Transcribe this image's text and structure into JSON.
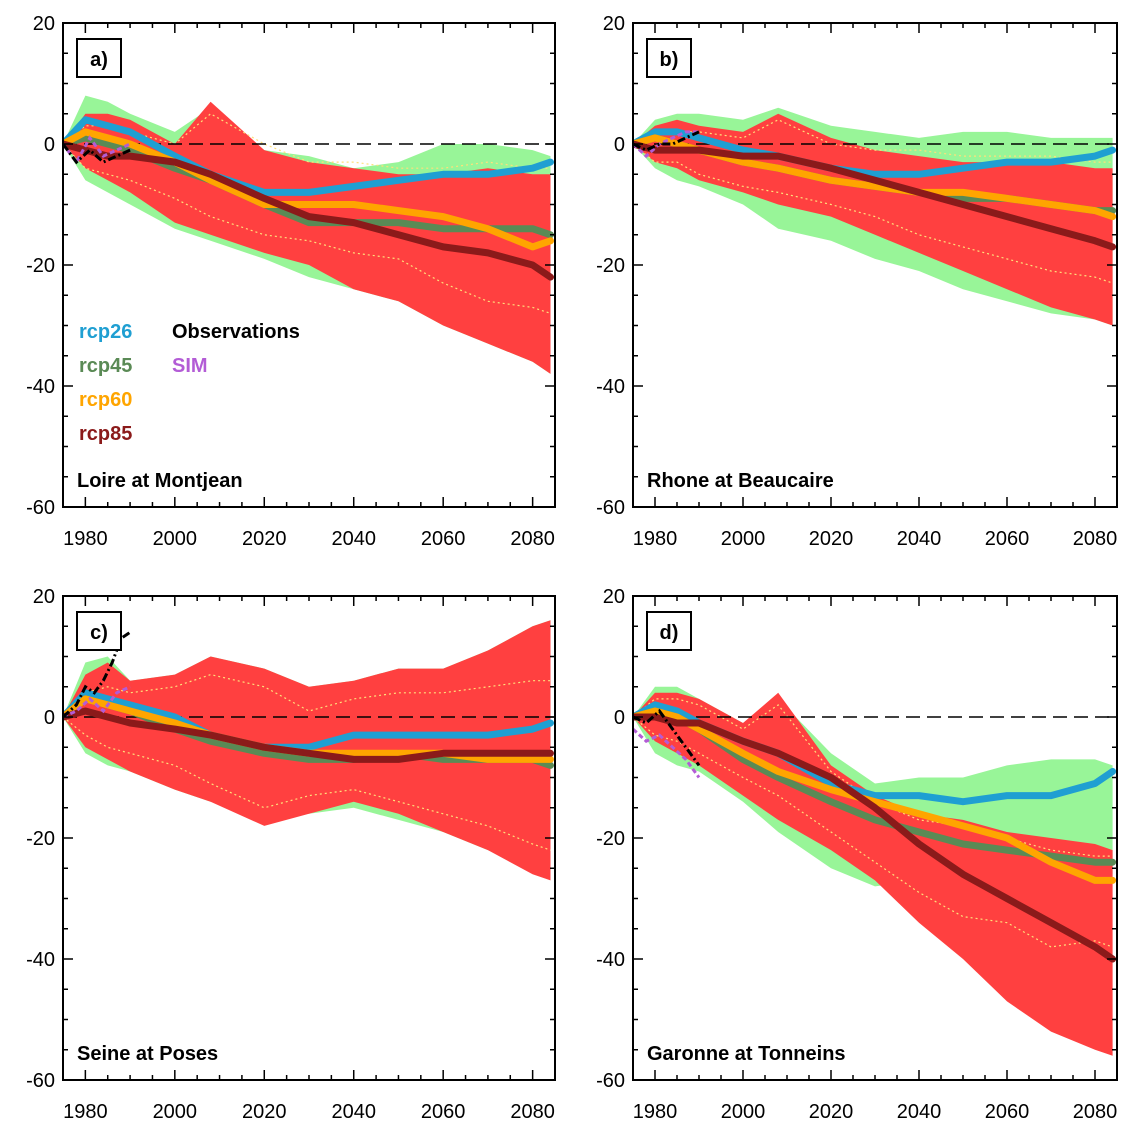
{
  "colors": {
    "rcp26": "#1f9fd2",
    "rcp45": "#5a8a55",
    "rcp60": "#ffa500",
    "rcp85": "#8b1a1a",
    "observations": "#000000",
    "sim": "#b35cd6",
    "spread_rcp85": "#ff4040",
    "spread_all": "#98f598",
    "percentile_line": "#ffe07a"
  },
  "chart_data": [
    {
      "type": "line",
      "panel_label": "a)",
      "station": "Loire at Montjean",
      "xlim": [
        1975,
        2085
      ],
      "ylim": [
        -60,
        20
      ],
      "xticks": [
        1980,
        2000,
        2020,
        2040,
        2060,
        2080
      ],
      "yticks": [
        20,
        0,
        -20,
        -40,
        -60
      ],
      "legend": {
        "placement": "left",
        "entries": [
          {
            "key": "rcp26",
            "label": "rcp26"
          },
          {
            "key": "rcp45",
            "label": "rcp45"
          },
          {
            "key": "rcp60",
            "label": "rcp60"
          },
          {
            "key": "rcp85",
            "label": "rcp85"
          },
          {
            "key": "observations",
            "label": "Observations"
          },
          {
            "key": "sim",
            "label": "SIM"
          }
        ]
      },
      "x": [
        1975,
        1980,
        1985,
        1990,
        2000,
        2008,
        2020,
        2030,
        2040,
        2050,
        2060,
        2070,
        2080,
        2084
      ],
      "green_upper": [
        0,
        8,
        7,
        5,
        2,
        6,
        -1,
        -2,
        -4,
        -3,
        0,
        0,
        -1,
        -2
      ],
      "green_lower": [
        0,
        -6,
        -8,
        -10,
        -14,
        -16,
        -19,
        -22,
        -24,
        -26,
        -30,
        -33,
        -36,
        -38
      ],
      "red_upper": [
        0,
        5,
        5,
        4,
        0,
        7,
        -1,
        -3,
        -4,
        -5,
        -5,
        -4,
        -5,
        -5
      ],
      "red_lower": [
        0,
        -4,
        -6,
        -8,
        -13,
        -15,
        -18,
        -20,
        -24,
        -26,
        -30,
        -33,
        -36,
        -38
      ],
      "dotted_upper": [
        0,
        3,
        3,
        2,
        0,
        5,
        0,
        -3,
        -3,
        -4,
        -4,
        -3,
        -4,
        -4
      ],
      "dotted_lower": [
        0,
        -4,
        -5,
        -6,
        -9,
        -12,
        -15,
        -16,
        -18,
        -19,
        -23,
        -26,
        -27,
        -28
      ],
      "series": [
        {
          "key": "rcp26",
          "values": [
            0,
            4,
            3,
            2,
            -2,
            -5,
            -8,
            -8,
            -7,
            -6,
            -5,
            -5,
            -4,
            -3
          ]
        },
        {
          "key": "rcp45",
          "values": [
            0,
            1,
            0,
            -1,
            -4,
            -6,
            -10,
            -13,
            -13,
            -13,
            -14,
            -14,
            -14,
            -15
          ]
        },
        {
          "key": "rcp60",
          "values": [
            0,
            2,
            1,
            0,
            -3,
            -6,
            -10,
            -10,
            -10,
            -11,
            -12,
            -14,
            -17,
            -16
          ]
        },
        {
          "key": "rcp85",
          "values": [
            0,
            -1,
            -2,
            -2,
            -3,
            -5,
            -9,
            -12,
            -13,
            -15,
            -17,
            -18,
            -20,
            -22
          ]
        }
      ],
      "obs_x": [
        1975,
        1978,
        1981,
        1984,
        1987,
        1990
      ],
      "obs": [
        0,
        -3,
        -1,
        -3,
        -2,
        -1
      ],
      "sim_x": [
        1975,
        1978,
        1981,
        1984,
        1987,
        1990
      ],
      "sim": [
        0,
        -3,
        1,
        -2,
        -1,
        0
      ]
    },
    {
      "type": "line",
      "panel_label": "b)",
      "station": "Rhone at Beaucaire",
      "xlim": [
        1975,
        2085
      ],
      "ylim": [
        -60,
        20
      ],
      "xticks": [
        1980,
        2000,
        2020,
        2040,
        2060,
        2080
      ],
      "yticks": [
        20,
        0,
        -20,
        -40,
        -60
      ],
      "x": [
        1975,
        1980,
        1985,
        1990,
        2000,
        2008,
        2020,
        2030,
        2040,
        2050,
        2060,
        2070,
        2080,
        2084
      ],
      "green_upper": [
        0,
        4,
        5,
        5,
        4,
        6,
        3,
        2,
        1,
        2,
        2,
        1,
        1,
        1
      ],
      "green_lower": [
        0,
        -4,
        -6,
        -7,
        -10,
        -14,
        -16,
        -19,
        -21,
        -24,
        -26,
        -28,
        -29,
        -30
      ],
      "red_upper": [
        0,
        3,
        4,
        3,
        2,
        5,
        1,
        -1,
        -2,
        -3,
        -3,
        -3,
        -4,
        -4
      ],
      "red_lower": [
        0,
        -3,
        -4,
        -6,
        -8,
        -10,
        -12,
        -15,
        -18,
        -21,
        -24,
        -27,
        -29,
        -30
      ],
      "dotted_upper": [
        0,
        2,
        2,
        2,
        1,
        4,
        0,
        -1,
        -1,
        -2,
        -2,
        -2,
        -3,
        -3
      ],
      "dotted_lower": [
        0,
        -3,
        -3,
        -5,
        -7,
        -8,
        -10,
        -12,
        -15,
        -17,
        -19,
        -21,
        -22,
        -23
      ],
      "series": [
        {
          "key": "rcp26",
          "values": [
            0,
            2,
            2,
            1,
            -1,
            -2,
            -4,
            -5,
            -5,
            -4,
            -3,
            -3,
            -2,
            -1
          ]
        },
        {
          "key": "rcp45",
          "values": [
            0,
            1,
            0,
            -1,
            -3,
            -4,
            -6,
            -7,
            -8,
            -9,
            -9,
            -10,
            -11,
            -11
          ]
        },
        {
          "key": "rcp60",
          "values": [
            0,
            1,
            0,
            -1,
            -3,
            -4,
            -6,
            -7,
            -8,
            -8,
            -9,
            -10,
            -11,
            -12
          ]
        },
        {
          "key": "rcp85",
          "values": [
            0,
            -1,
            -1,
            -1,
            -2,
            -2,
            -4,
            -6,
            -8,
            -10,
            -12,
            -14,
            -16,
            -17
          ]
        }
      ],
      "obs_x": [
        1975,
        1978,
        1981,
        1984,
        1987,
        1990
      ],
      "obs": [
        0,
        -1,
        0,
        0,
        1,
        2
      ],
      "sim_x": [
        1975,
        1978,
        1981,
        1984,
        1987,
        1990
      ],
      "sim": [
        0,
        -2,
        0,
        1,
        2,
        2
      ]
    },
    {
      "type": "line",
      "panel_label": "c)",
      "station": "Seine at Poses",
      "xlim": [
        1975,
        2085
      ],
      "ylim": [
        -60,
        20
      ],
      "xticks": [
        1980,
        2000,
        2020,
        2040,
        2060,
        2080
      ],
      "yticks": [
        20,
        0,
        -20,
        -40,
        -60
      ],
      "x": [
        1975,
        1980,
        1985,
        1990,
        2000,
        2008,
        2020,
        2030,
        2040,
        2050,
        2060,
        2070,
        2080,
        2084
      ],
      "green_upper": [
        0,
        9,
        10,
        6,
        7,
        10,
        8,
        5,
        6,
        8,
        8,
        11,
        15,
        16
      ],
      "green_lower": [
        0,
        -6,
        -8,
        -9,
        -12,
        -14,
        -16,
        -16,
        -15,
        -17,
        -19,
        -22,
        -25,
        -27
      ],
      "red_upper": [
        0,
        7,
        9,
        6,
        7,
        10,
        8,
        5,
        6,
        8,
        8,
        11,
        15,
        16
      ],
      "red_lower": [
        0,
        -5,
        -7,
        -9,
        -12,
        -14,
        -18,
        -16,
        -14,
        -16,
        -19,
        -22,
        -26,
        -27
      ],
      "dotted_upper": [
        0,
        4,
        5,
        4,
        5,
        7,
        5,
        1,
        3,
        4,
        4,
        5,
        6,
        6
      ],
      "dotted_lower": [
        0,
        -3,
        -5,
        -6,
        -8,
        -11,
        -15,
        -13,
        -12,
        -14,
        -16,
        -18,
        -21,
        -22
      ],
      "series": [
        {
          "key": "rcp26",
          "values": [
            0,
            4,
            3,
            2,
            0,
            -3,
            -5,
            -5,
            -3,
            -3,
            -3,
            -3,
            -2,
            -1
          ]
        },
        {
          "key": "rcp45",
          "values": [
            0,
            3,
            2,
            1,
            -2,
            -4,
            -6,
            -7,
            -7,
            -6,
            -7,
            -7,
            -7,
            -8
          ]
        },
        {
          "key": "rcp60",
          "values": [
            0,
            3,
            2,
            1,
            -1,
            -3,
            -5,
            -6,
            -6,
            -6,
            -6,
            -7,
            -7,
            -7
          ]
        },
        {
          "key": "rcp85",
          "values": [
            0,
            1,
            0,
            -1,
            -2,
            -3,
            -5,
            -6,
            -7,
            -7,
            -6,
            -6,
            -6,
            -6
          ]
        }
      ],
      "obs_x": [
        1975,
        1978,
        1980,
        1982,
        1984,
        1986,
        1988,
        1990
      ],
      "obs": [
        0,
        2,
        5,
        4,
        6,
        9,
        13,
        14
      ],
      "sim_x": [
        1975,
        1978,
        1981,
        1984,
        1987,
        1990
      ],
      "sim": [
        0,
        1,
        3,
        1,
        4,
        5
      ]
    },
    {
      "type": "line",
      "panel_label": "d)",
      "station": "Garonne at Tonneins",
      "xlim": [
        1975,
        2085
      ],
      "ylim": [
        -60,
        20
      ],
      "xticks": [
        1980,
        2000,
        2020,
        2040,
        2060,
        2080
      ],
      "yticks": [
        20,
        0,
        -20,
        -40,
        -60
      ],
      "x": [
        1975,
        1980,
        1985,
        1990,
        2000,
        2008,
        2020,
        2030,
        2040,
        2050,
        2060,
        2070,
        2080,
        2084
      ],
      "green_upper": [
        0,
        5,
        5,
        3,
        -1,
        3,
        -6,
        -11,
        -10,
        -10,
        -8,
        -7,
        -7,
        -8
      ],
      "green_lower": [
        0,
        -6,
        -8,
        -9,
        -14,
        -19,
        -25,
        -28,
        -27,
        -28,
        -27,
        -26,
        -25,
        -26
      ],
      "red_upper": [
        0,
        4,
        4,
        3,
        -1,
        4,
        -8,
        -13,
        -16,
        -17,
        -19,
        -20,
        -21,
        -22
      ],
      "red_lower": [
        0,
        -4,
        -6,
        -8,
        -13,
        -17,
        -22,
        -27,
        -34,
        -40,
        -47,
        -52,
        -55,
        -56
      ],
      "dotted_upper": [
        0,
        3,
        3,
        2,
        -2,
        2,
        -9,
        -14,
        -17,
        -18,
        -20,
        -22,
        -23,
        -23
      ],
      "dotted_lower": [
        0,
        -3,
        -4,
        -6,
        -10,
        -13,
        -19,
        -24,
        -29,
        -33,
        -34,
        -38,
        -37,
        -38
      ],
      "series": [
        {
          "key": "rcp26",
          "values": [
            0,
            2,
            1,
            -1,
            -4,
            -6,
            -11,
            -13,
            -13,
            -14,
            -13,
            -13,
            -11,
            -9
          ]
        },
        {
          "key": "rcp45",
          "values": [
            0,
            1,
            0,
            -2,
            -7,
            -10,
            -14,
            -17,
            -19,
            -21,
            -22,
            -23,
            -24,
            -24
          ]
        },
        {
          "key": "rcp60",
          "values": [
            0,
            1,
            0,
            -2,
            -6,
            -9,
            -12,
            -14,
            -16,
            -18,
            -20,
            -24,
            -27,
            -27
          ]
        },
        {
          "key": "rcp85",
          "values": [
            0,
            0,
            -1,
            -1,
            -4,
            -6,
            -10,
            -15,
            -21,
            -26,
            -30,
            -34,
            -38,
            -40
          ]
        }
      ],
      "obs_x": [
        1975,
        1978,
        1981,
        1984,
        1987,
        1990
      ],
      "obs": [
        0,
        -1,
        1,
        -2,
        -5,
        -8
      ],
      "sim_x": [
        1975,
        1978,
        1981,
        1984,
        1987,
        1990
      ],
      "sim": [
        -2,
        -4,
        -3,
        -5,
        -7,
        -10
      ]
    }
  ]
}
